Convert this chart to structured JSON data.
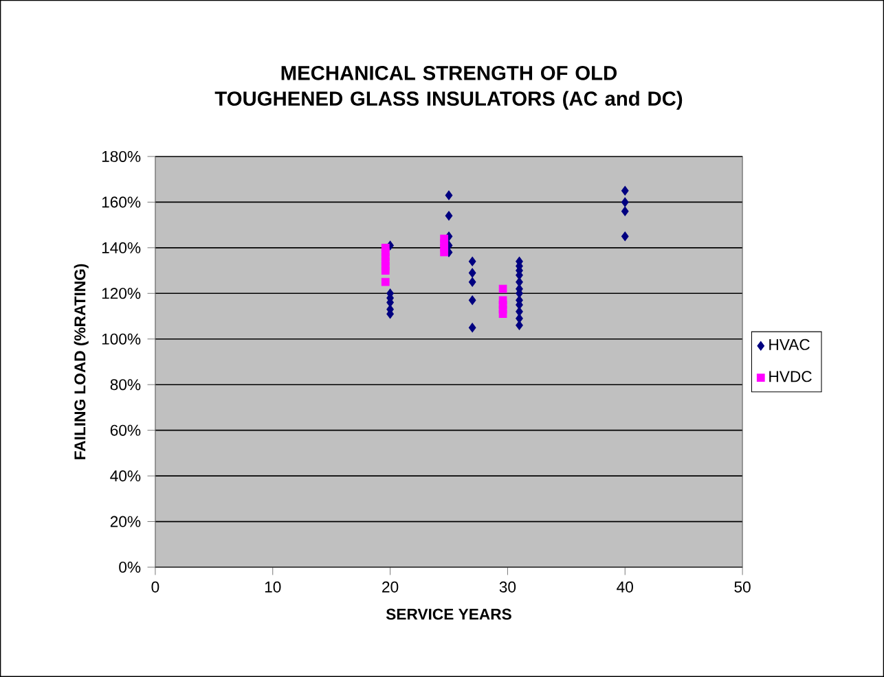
{
  "chart_data": {
    "type": "scatter",
    "title": "MECHANICAL STRENGTH OF OLD TOUGHENED GLASS INSULATORS (AC and DC)",
    "xlabel": "SERVICE YEARS",
    "ylabel": "FAILING LOAD (%RATING)",
    "xlim": [
      0,
      50
    ],
    "xticks": [
      0,
      10,
      20,
      30,
      40,
      50
    ],
    "ylim": [
      0,
      180
    ],
    "yticks": [
      {
        "value": 0,
        "label": "0%"
      },
      {
        "value": 20,
        "label": "20%"
      },
      {
        "value": 40,
        "label": "40%"
      },
      {
        "value": 60,
        "label": "60%"
      },
      {
        "value": 80,
        "label": "80%"
      },
      {
        "value": 100,
        "label": "100%"
      },
      {
        "value": 120,
        "label": "120%"
      },
      {
        "value": 140,
        "label": "140%"
      },
      {
        "value": 160,
        "label": "160%"
      },
      {
        "value": 180,
        "label": "180%"
      }
    ],
    "grid": "y",
    "legend": "right",
    "series": [
      {
        "name": "HVAC",
        "color": "#000080",
        "marker": "diamond",
        "x": [
          20,
          20,
          20,
          20,
          20,
          20,
          25,
          25,
          25,
          25,
          25,
          27,
          27,
          27,
          27,
          27,
          31,
          31,
          31,
          31,
          31,
          31,
          31,
          31,
          31,
          31,
          31,
          31,
          40,
          40,
          40,
          40
        ],
        "values": [
          141,
          120,
          118,
          116,
          113,
          111,
          163,
          154,
          145,
          141,
          138,
          134,
          129,
          125,
          117,
          105,
          134,
          132,
          130,
          128,
          125,
          122,
          120,
          117,
          115,
          112,
          109,
          106,
          165,
          160,
          156,
          145
        ]
      },
      {
        "name": "HVDC",
        "color": "#ff00ff",
        "marker": "square",
        "x": [
          19.6,
          19.6,
          19.6,
          19.6,
          19.6,
          19.6,
          19.6,
          24.6,
          24.6,
          24.6,
          24.6,
          29.6,
          29.6,
          29.6,
          29.6,
          29.6
        ],
        "values": [
          140,
          138,
          136,
          134,
          132,
          130,
          125,
          144,
          142,
          140,
          138,
          122,
          117,
          115,
          113,
          111
        ]
      }
    ]
  }
}
